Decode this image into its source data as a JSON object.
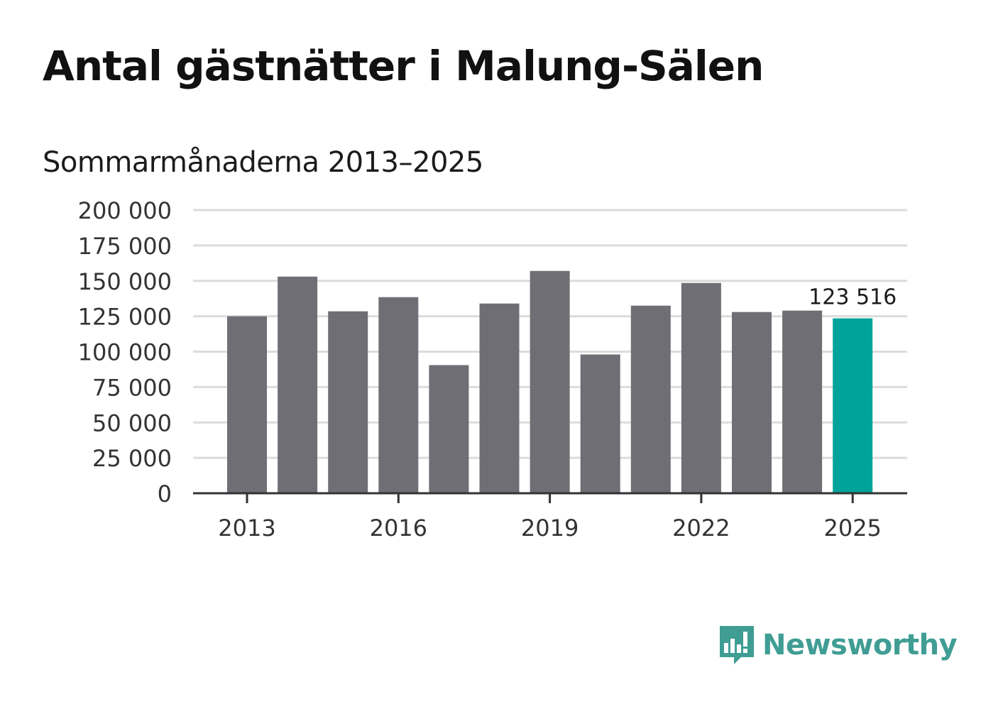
{
  "title": "Antal gästnätter i Malung-Sälen",
  "subtitle": "Sommarmånaderna 2013–2025",
  "brand": {
    "name": "Newsworthy",
    "color": "#3f9d94"
  },
  "colors": {
    "bar": "#6f6e75",
    "highlight": "#00a39a",
    "grid": "#dcdcdc",
    "axis": "#333333"
  },
  "chart_data": {
    "type": "bar",
    "title": "Antal gästnätter i Malung-Sälen",
    "subtitle": "Sommarmånaderna 2013–2025",
    "categories": [
      "2013",
      "2014",
      "2015",
      "2016",
      "2017",
      "2018",
      "2019",
      "2020",
      "2021",
      "2022",
      "2023",
      "2024",
      "2025"
    ],
    "values": [
      125000,
      153000,
      128500,
      138500,
      90500,
      134000,
      157000,
      98000,
      132500,
      148500,
      128000,
      129000,
      123516
    ],
    "ylim": [
      0,
      200000
    ],
    "yticks": [
      0,
      25000,
      50000,
      75000,
      100000,
      125000,
      150000,
      175000,
      200000
    ],
    "ytick_labels": [
      "0",
      "25 000",
      "50 000",
      "75 000",
      "100 000",
      "125 000",
      "150 000",
      "175 000",
      "200 000"
    ],
    "xtick_labels": [
      "2013",
      "2016",
      "2019",
      "2022",
      "2025"
    ],
    "highlight_index": 12,
    "data_labels": [
      {
        "index": 12,
        "text": "123 516"
      }
    ],
    "xlabel": "",
    "ylabel": "",
    "grid": true,
    "legend": "none"
  }
}
